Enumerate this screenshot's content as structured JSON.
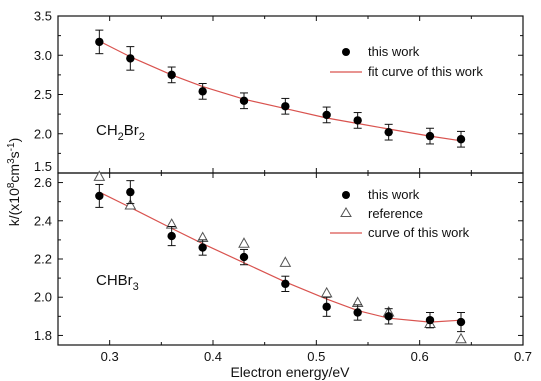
{
  "figure": {
    "y_label_main": "k/(x10",
    "y_label_exp1": "8",
    "y_label_mid": "cm",
    "y_label_exp2": "3",
    "y_label_s": "s",
    "y_label_exp3": "-1",
    "y_label_close": ")",
    "line_color": "#d9534f",
    "marker_color": "#000000"
  },
  "chart_data": [
    {
      "type": "scatter",
      "panel_label": "CH2Br2",
      "panel_label_parts": [
        "CH",
        "2",
        "Br",
        "2"
      ],
      "xlabel": "Electron energy/eV",
      "xlim": [
        0.25,
        0.7
      ],
      "ylim": [
        1.5,
        3.5
      ],
      "x_ticks": [
        "0.3",
        "0.4",
        "0.5",
        "0.6",
        "0.7"
      ],
      "y_ticks": [
        "1.5",
        "2.0",
        "2.5",
        "3.0",
        "3.5"
      ],
      "legend": {
        "placement": "top-right",
        "entries": [
          "this work",
          "fit curve of this work"
        ]
      },
      "series": [
        {
          "name": "this work",
          "marker": "filled-circle",
          "x": [
            0.29,
            0.32,
            0.36,
            0.39,
            0.43,
            0.47,
            0.51,
            0.54,
            0.57,
            0.61,
            0.64
          ],
          "y": [
            3.17,
            2.96,
            2.75,
            2.54,
            2.42,
            2.35,
            2.24,
            2.17,
            2.02,
            1.97,
            1.93
          ],
          "yerr": [
            0.15,
            0.15,
            0.1,
            0.1,
            0.1,
            0.1,
            0.1,
            0.1,
            0.1,
            0.1,
            0.1
          ]
        },
        {
          "name": "fit curve of this work",
          "marker": "line",
          "x": [
            0.29,
            0.32,
            0.36,
            0.39,
            0.43,
            0.47,
            0.51,
            0.54,
            0.57,
            0.61,
            0.64
          ],
          "y": [
            3.18,
            2.98,
            2.75,
            2.6,
            2.44,
            2.32,
            2.2,
            2.13,
            2.06,
            1.97,
            1.91
          ]
        }
      ]
    },
    {
      "type": "scatter",
      "panel_label": "CHBr3",
      "panel_label_parts": [
        "CHBr",
        "3"
      ],
      "xlabel": "Electron energy/eV",
      "xlim": [
        0.25,
        0.7
      ],
      "ylim": [
        1.75,
        2.65
      ],
      "x_ticks": [
        "0.3",
        "0.4",
        "0.5",
        "0.6",
        "0.7"
      ],
      "y_ticks": [
        "1.8",
        "2.0",
        "2.2",
        "2.4",
        "2.6"
      ],
      "legend": {
        "placement": "top-right",
        "entries": [
          "this work",
          "reference",
          "curve of this work"
        ]
      },
      "series": [
        {
          "name": "this work",
          "marker": "filled-circle",
          "x": [
            0.29,
            0.32,
            0.36,
            0.39,
            0.43,
            0.47,
            0.51,
            0.54,
            0.57,
            0.61,
            0.64
          ],
          "y": [
            2.53,
            2.55,
            2.32,
            2.26,
            2.21,
            2.07,
            1.95,
            1.92,
            1.9,
            1.88,
            1.87
          ],
          "yerr": [
            0.06,
            0.06,
            0.05,
            0.04,
            0.04,
            0.04,
            0.05,
            0.04,
            0.04,
            0.04,
            0.05
          ]
        },
        {
          "name": "reference",
          "marker": "open-triangle",
          "x": [
            0.29,
            0.32,
            0.36,
            0.39,
            0.43,
            0.47,
            0.51,
            0.54,
            0.57,
            0.61,
            0.64
          ],
          "y": [
            2.63,
            2.48,
            2.38,
            2.31,
            2.28,
            2.18,
            2.02,
            1.97,
            1.92,
            1.86,
            1.78
          ]
        },
        {
          "name": "curve of this work",
          "marker": "line",
          "x": [
            0.29,
            0.32,
            0.36,
            0.39,
            0.43,
            0.47,
            0.51,
            0.54,
            0.57,
            0.61,
            0.64
          ],
          "y": [
            2.55,
            2.47,
            2.36,
            2.28,
            2.18,
            2.08,
            1.99,
            1.93,
            1.89,
            1.87,
            1.88
          ]
        }
      ]
    }
  ]
}
